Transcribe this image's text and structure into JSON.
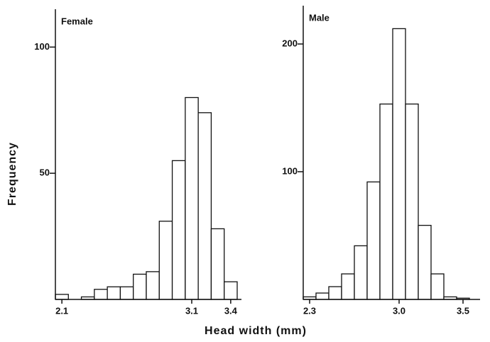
{
  "xlabel": "Head width (mm)",
  "ylabel": "Frequency",
  "chart_data": [
    {
      "type": "histogram",
      "title": "Female",
      "bins": [
        2.05,
        2.15,
        2.25,
        2.35,
        2.45,
        2.55,
        2.65,
        2.75,
        2.85,
        2.95,
        3.05,
        3.15,
        3.25,
        3.35,
        3.45
      ],
      "values": [
        2,
        0,
        1,
        4,
        5,
        5,
        10,
        11,
        31,
        55,
        80,
        74,
        28,
        7
      ],
      "xlim": [
        2.05,
        3.45
      ],
      "xticks": [
        2.1,
        3.1,
        3.4
      ],
      "ylim": [
        0,
        115
      ],
      "yticks": [
        50,
        100
      ],
      "color": "#ffffff"
    },
    {
      "type": "histogram",
      "title": "Male",
      "bins": [
        2.25,
        2.35,
        2.45,
        2.55,
        2.65,
        2.75,
        2.85,
        2.95,
        3.05,
        3.15,
        3.25,
        3.35,
        3.45,
        3.55
      ],
      "values": [
        2,
        5,
        10,
        20,
        42,
        92,
        153,
        212,
        153,
        58,
        20,
        2,
        1
      ],
      "xlim": [
        2.25,
        3.6
      ],
      "xticks": [
        2.3,
        3.0,
        3.5
      ],
      "ylim": [
        0,
        230
      ],
      "yticks": [
        100,
        200
      ],
      "color": "#ffffff"
    }
  ]
}
